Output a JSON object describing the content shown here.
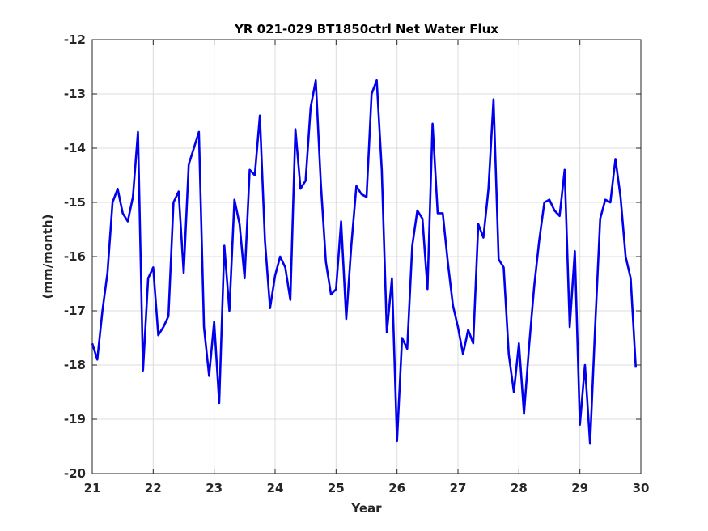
{
  "chart_data": {
    "type": "line",
    "title": "YR 021-029 BT1850ctrl Net Water Flux",
    "xlabel": "Year",
    "ylabel": "(mm/month)",
    "xlim": [
      21,
      30
    ],
    "ylim": [
      -20,
      -12
    ],
    "xticks": [
      "21",
      "22",
      "23",
      "24",
      "25",
      "26",
      "27",
      "28",
      "29",
      "30"
    ],
    "yticks": [
      "-12",
      "-13",
      "-14",
      "-15",
      "-16",
      "-17",
      "-18",
      "-19",
      "-20"
    ],
    "grid": true,
    "series": [
      {
        "color": "#0000ee",
        "x": [
          21.0,
          21.083,
          21.167,
          21.25,
          21.333,
          21.417,
          21.5,
          21.583,
          21.667,
          21.75,
          21.833,
          21.917,
          22.0,
          22.083,
          22.167,
          22.25,
          22.333,
          22.417,
          22.5,
          22.583,
          22.667,
          22.75,
          22.833,
          22.917,
          23.0,
          23.083,
          23.167,
          23.25,
          23.333,
          23.417,
          23.5,
          23.583,
          23.667,
          23.75,
          23.833,
          23.917,
          24.0,
          24.083,
          24.167,
          24.25,
          24.333,
          24.417,
          24.5,
          24.583,
          24.667,
          24.75,
          24.833,
          24.917,
          25.0,
          25.083,
          25.167,
          25.25,
          25.333,
          25.417,
          25.5,
          25.583,
          25.667,
          25.75,
          25.833,
          25.917,
          26.0,
          26.083,
          26.167,
          26.25,
          26.333,
          26.417,
          26.5,
          26.583,
          26.667,
          26.75,
          26.833,
          26.917,
          27.0,
          27.083,
          27.167,
          27.25,
          27.333,
          27.417,
          27.5,
          27.583,
          27.667,
          27.75,
          27.833,
          27.917,
          28.0,
          28.083,
          28.167,
          28.25,
          28.333,
          28.417,
          28.5,
          28.583,
          28.667,
          28.75,
          28.833,
          28.917,
          29.0,
          29.083,
          29.167,
          29.25,
          29.333,
          29.417,
          29.5,
          29.583,
          29.667,
          29.75,
          29.833,
          29.917
        ],
        "y": [
          -17.6,
          -17.9,
          -17.0,
          -16.3,
          -15.0,
          -14.75,
          -15.2,
          -15.35,
          -14.9,
          -13.7,
          -18.1,
          -16.4,
          -16.2,
          -17.45,
          -17.3,
          -17.1,
          -15.0,
          -14.8,
          -16.3,
          -14.3,
          -14.0,
          -13.7,
          -17.3,
          -18.2,
          -17.2,
          -18.7,
          -15.8,
          -17.0,
          -14.95,
          -15.4,
          -16.4,
          -14.4,
          -14.5,
          -13.4,
          -15.7,
          -16.95,
          -16.35,
          -16.0,
          -16.2,
          -16.8,
          -13.65,
          -14.75,
          -14.6,
          -13.25,
          -12.75,
          -14.65,
          -16.1,
          -16.7,
          -16.6,
          -15.35,
          -17.15,
          -15.8,
          -14.7,
          -14.85,
          -14.9,
          -13.0,
          -12.75,
          -14.4,
          -17.4,
          -16.4,
          -19.4,
          -17.5,
          -17.7,
          -15.8,
          -15.15,
          -15.3,
          -16.6,
          -13.55,
          -15.2,
          -15.2,
          -16.1,
          -16.9,
          -17.3,
          -17.8,
          -17.35,
          -17.6,
          -15.4,
          -15.65,
          -14.75,
          -13.1,
          -16.05,
          -16.2,
          -17.8,
          -18.5,
          -17.6,
          -18.9,
          -17.65,
          -16.55,
          -15.7,
          -15.0,
          -14.95,
          -15.15,
          -15.25,
          -14.4,
          -17.3,
          -15.9,
          -19.1,
          -18.0,
          -19.45,
          -17.3,
          -15.3,
          -14.95,
          -15.0,
          -14.2,
          -14.9,
          -16.0,
          -16.4,
          -18.05
        ]
      }
    ]
  }
}
